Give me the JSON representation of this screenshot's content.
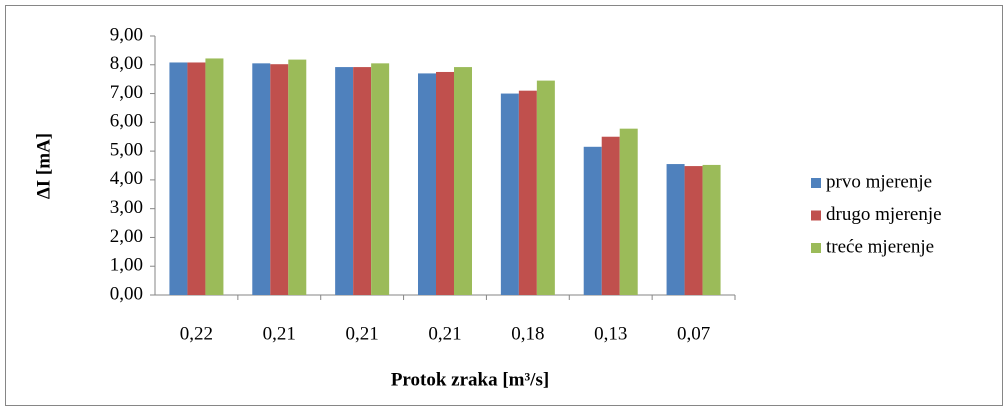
{
  "chart_data": {
    "type": "bar",
    "categories": [
      "0,22",
      "0,21",
      "0,21",
      "0,21",
      "0,18",
      "0,13",
      "0,07"
    ],
    "series": [
      {
        "name": "prvo mjerenje",
        "color": "#4f81bd",
        "values": [
          8.08,
          8.05,
          7.92,
          7.7,
          7.0,
          5.15,
          4.55
        ]
      },
      {
        "name": "drugo mjerenje",
        "color": "#c0504d",
        "values": [
          8.08,
          8.02,
          7.92,
          7.75,
          7.1,
          5.5,
          4.48
        ]
      },
      {
        "name": "treće mjerenje",
        "color": "#9bbb59",
        "values": [
          8.22,
          8.18,
          8.05,
          7.92,
          7.45,
          5.78,
          4.52
        ]
      }
    ],
    "ylim": [
      0,
      9
    ],
    "yticks": [
      {
        "value": 0,
        "label": "0,00"
      },
      {
        "value": 1,
        "label": "1,00"
      },
      {
        "value": 2,
        "label": "2,00"
      },
      {
        "value": 3,
        "label": "3,00"
      },
      {
        "value": 4,
        "label": "4,00"
      },
      {
        "value": 5,
        "label": "5,00"
      },
      {
        "value": 6,
        "label": "6,00"
      },
      {
        "value": 7,
        "label": "7,00"
      },
      {
        "value": 8,
        "label": "8,00"
      },
      {
        "value": 9,
        "label": "9,00"
      }
    ],
    "y_label": "ΔI [mA]",
    "x_label": "Protok zraka [m³/s]",
    "legend": "right",
    "grid": false
  }
}
